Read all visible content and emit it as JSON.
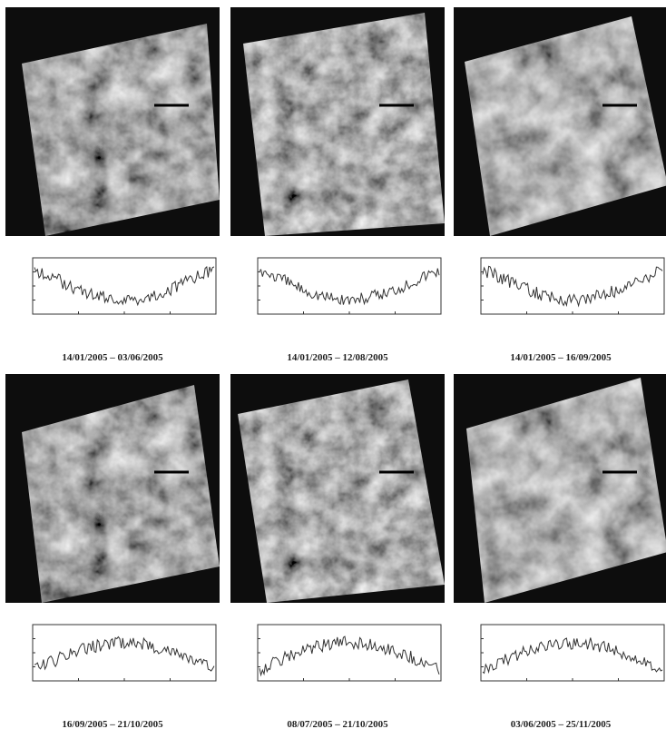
{
  "panels": [
    {
      "caption": "14/01/2005 – 03/06/2005"
    },
    {
      "caption": "14/01/2005 – 12/08/2005"
    },
    {
      "caption": "14/01/2005 – 16/09/2005"
    },
    {
      "caption": "16/09/2005 – 21/10/2005"
    },
    {
      "caption": "08/07/2005 – 21/10/2005"
    },
    {
      "caption": "03/06/2005 – 25/11/2005"
    }
  ]
}
